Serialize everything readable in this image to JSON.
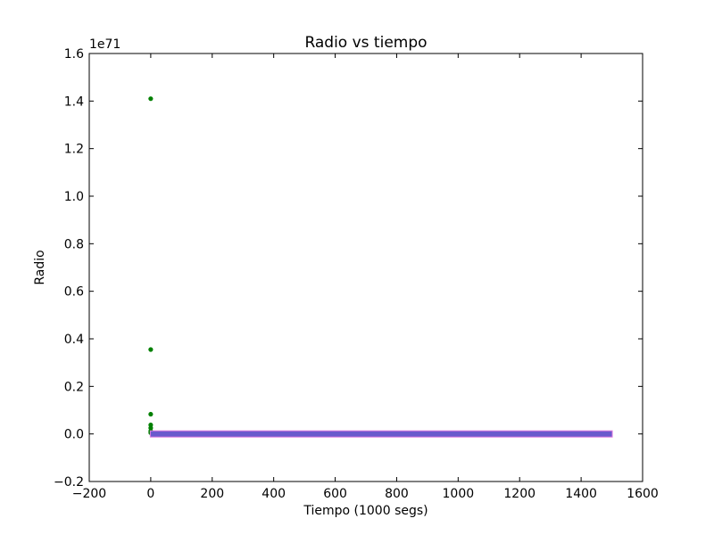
{
  "chart_data": {
    "type": "scatter",
    "title": "Radio vs tiempo",
    "xlabel": "Tiempo (1000 segs)",
    "ylabel": "Radio",
    "y_offset_label": "1e71",
    "xlim": [
      -200,
      1600
    ],
    "ylim": [
      -0.2,
      1.6
    ],
    "x_ticks": [
      -200,
      0,
      200,
      400,
      600,
      800,
      1000,
      1200,
      1400,
      1600
    ],
    "x_tick_labels": [
      "−200",
      "0",
      "200",
      "400",
      "600",
      "800",
      "1000",
      "1200",
      "1400",
      "1600"
    ],
    "y_ticks": [
      -0.2,
      0.0,
      0.2,
      0.4,
      0.6,
      0.8,
      1.0,
      1.2,
      1.4,
      1.6
    ],
    "y_tick_labels": [
      "−0.2",
      "0.0",
      "0.2",
      "0.4",
      "0.6",
      "0.8",
      "1.0",
      "1.2",
      "1.4",
      "1.6"
    ],
    "grid": false,
    "series": [
      {
        "color": "#008000",
        "marker": "dot",
        "points": [
          {
            "x": 0,
            "y": 1.41
          },
          {
            "x": 0,
            "y": 0.355
          },
          {
            "x": 0,
            "y": 0.083
          },
          {
            "x": 0,
            "y": 0.038
          },
          {
            "x": 0,
            "y": 0.025
          },
          {
            "x": 0,
            "y": 0.012
          },
          {
            "x": 0,
            "y": 0.005
          }
        ]
      },
      {
        "color": "#6a5acd",
        "edge_color": "#e07be0",
        "marker": "dense-band",
        "x_start": 0,
        "x_end": 1500,
        "y": 0.0
      }
    ]
  }
}
